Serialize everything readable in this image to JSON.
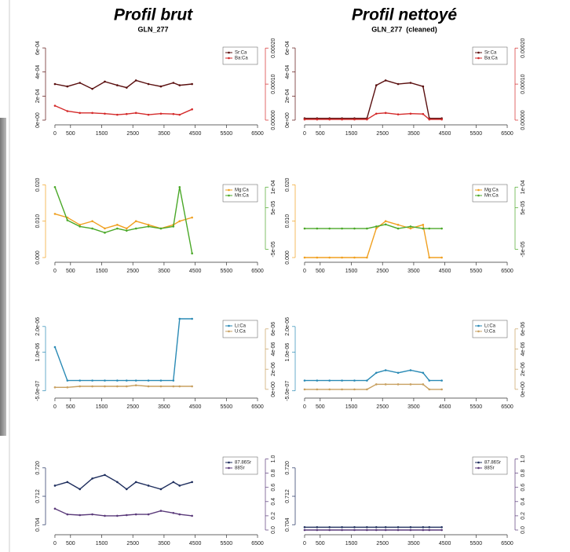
{
  "columns": [
    {
      "title": "Profil brut",
      "subtitle": "GLN_277"
    },
    {
      "title": "Profil nettoyé",
      "subtitle": "GLN_277  (cleaned)"
    }
  ],
  "chart_data": [
    {
      "type": "line",
      "legend": "upper right",
      "x": [
        0,
        400,
        800,
        1200,
        1600,
        2000,
        2300,
        2600,
        3000,
        3400,
        3800,
        4000,
        4400
      ],
      "xlim": [
        -150,
        6600
      ],
      "xticks": [
        0,
        500,
        1500,
        2500,
        3500,
        4500,
        5500,
        6500
      ],
      "ylim": [
        0,
        0.00062
      ],
      "yticks": [
        {
          "value": 0,
          "label": "0e+00"
        },
        {
          "value": 0.0002,
          "label": "2e-04"
        },
        {
          "value": 0.0004,
          "label": "4e-04"
        },
        {
          "value": 0.0006,
          "label": "6e-04"
        }
      ],
      "y2lim": [
        0,
        0.000207
      ],
      "y2ticks": [
        {
          "value": 0,
          "label": "0.00000"
        },
        {
          "value": 0.0001,
          "label": "0.00010"
        },
        {
          "value": 0.0002,
          "label": "0.00020"
        }
      ],
      "series": [
        {
          "name": "Sr:Ca",
          "color": "#5a0f0f",
          "values": [
            0.0003,
            0.00028,
            0.00031,
            0.00026,
            0.00032,
            0.00029,
            0.00027,
            0.00033,
            0.0003,
            0.00028,
            0.00031,
            0.00029,
            0.0003
          ]
        },
        {
          "name": "Ba:Ca",
          "color": "#d42a2a",
          "axis": "y2",
          "values": [
            4e-05,
            2.5e-05,
            2e-05,
            2e-05,
            1.8e-05,
            1.5e-05,
            1.7e-05,
            2e-05,
            1.5e-05,
            1.8e-05,
            1.7e-05,
            1.5e-05,
            3e-05
          ]
        }
      ]
    },
    {
      "type": "line",
      "legend": "upper right",
      "x": [
        0,
        400,
        800,
        1200,
        1600,
        2000,
        2300,
        2600,
        3000,
        3400,
        3800,
        4000,
        4400
      ],
      "xlim": [
        -150,
        6600
      ],
      "xticks": [
        0,
        500,
        1500,
        2500,
        3500,
        4500,
        5500,
        6500
      ],
      "ylim": [
        0,
        0.00062
      ],
      "yticks": [
        {
          "value": 0,
          "label": "0e+00"
        },
        {
          "value": 0.0002,
          "label": "2e-04"
        },
        {
          "value": 0.0004,
          "label": "4e-04"
        },
        {
          "value": 0.0006,
          "label": "6e-04"
        }
      ],
      "y2lim": [
        0,
        0.000207
      ],
      "y2ticks": [
        {
          "value": 0,
          "label": "0.00000"
        },
        {
          "value": 0.0001,
          "label": "0.00010"
        },
        {
          "value": 0.0002,
          "label": "0.00020"
        }
      ],
      "series": [
        {
          "name": "Sr:Ca",
          "color": "#5a0f0f",
          "values": [
            1.5e-05,
            1.5e-05,
            1.5e-05,
            1.5e-05,
            1.5e-05,
            1.5e-05,
            0.00029,
            0.00033,
            0.0003,
            0.00031,
            0.00028,
            1.5e-05,
            1.5e-05
          ]
        },
        {
          "name": "Ba:Ca",
          "color": "#d42a2a",
          "axis": "y2",
          "values": [
            2e-06,
            2e-06,
            2e-06,
            2e-06,
            2e-06,
            2e-06,
            1.8e-05,
            2e-05,
            1.6e-05,
            1.8e-05,
            1.7e-05,
            2e-06,
            2e-06
          ]
        }
      ]
    },
    {
      "type": "line",
      "legend": "upper right",
      "x": [
        0,
        400,
        800,
        1200,
        1600,
        2000,
        2300,
        2600,
        3000,
        3400,
        3800,
        4000,
        4400
      ],
      "xlim": [
        -150,
        6600
      ],
      "xticks": [
        0,
        500,
        1500,
        2500,
        3500,
        4500,
        5500,
        6500
      ],
      "ylim": [
        0,
        0.0205
      ],
      "yticks": [
        {
          "value": 0,
          "label": "0.000"
        },
        {
          "value": 0.01,
          "label": "0.010"
        },
        {
          "value": 0.02,
          "label": "0.020"
        }
      ],
      "y2lim": [
        -7e-05,
        0.00011
      ],
      "y2ticks": [
        {
          "value": -5e-05,
          "label": "-5e-05"
        },
        {
          "value": 5e-05,
          "label": "5e-05"
        },
        {
          "value": 0.0001,
          "label": "1e-04"
        }
      ],
      "series": [
        {
          "name": "Mg:Ca",
          "color": "#f0a020",
          "values": [
            0.012,
            0.011,
            0.009,
            0.01,
            0.008,
            0.009,
            0.008,
            0.01,
            0.009,
            0.008,
            0.009,
            0.01,
            0.011
          ]
        },
        {
          "name": "Mn:Ca",
          "color": "#4aa828",
          "axis": "y2",
          "values": [
            0.0001,
            2e-05,
            5e-06,
            0,
            -1e-05,
            0,
            -5e-06,
            0,
            5e-06,
            0,
            5e-06,
            0.0001,
            -6e-05
          ]
        }
      ]
    },
    {
      "type": "line",
      "legend": "upper right",
      "x": [
        0,
        400,
        800,
        1200,
        1600,
        2000,
        2300,
        2600,
        3000,
        3400,
        3800,
        4000,
        4400
      ],
      "xlim": [
        -150,
        6600
      ],
      "xticks": [
        0,
        500,
        1500,
        2500,
        3500,
        4500,
        5500,
        6500
      ],
      "ylim": [
        0,
        0.0205
      ],
      "yticks": [
        {
          "value": 0,
          "label": "0.000"
        },
        {
          "value": 0.01,
          "label": "0.010"
        },
        {
          "value": 0.02,
          "label": "0.020"
        }
      ],
      "y2lim": [
        -7e-05,
        0.00011
      ],
      "y2ticks": [
        {
          "value": -5e-05,
          "label": "-5e-05"
        },
        {
          "value": 5e-05,
          "label": "5e-05"
        },
        {
          "value": 0.0001,
          "label": "1e-04"
        }
      ],
      "series": [
        {
          "name": "Mg:Ca",
          "color": "#f0a020",
          "values": [
            0,
            0,
            0,
            0,
            0,
            0,
            0.008,
            0.01,
            0.009,
            0.008,
            0.009,
            0,
            0
          ]
        },
        {
          "name": "Mn:Ca",
          "color": "#4aa828",
          "axis": "y2",
          "values": [
            0,
            0,
            0,
            0,
            0,
            0,
            5e-06,
            1e-05,
            0,
            5e-06,
            0,
            0,
            0
          ]
        }
      ]
    },
    {
      "type": "line",
      "legend": "upper right",
      "x": [
        0,
        400,
        800,
        1200,
        1600,
        2000,
        2300,
        2600,
        3000,
        3400,
        3800,
        4000,
        4400
      ],
      "xlim": [
        -150,
        6600
      ],
      "xticks": [
        0,
        500,
        1500,
        2500,
        3500,
        4500,
        5500,
        6500
      ],
      "ylim": [
        -6e-07,
        2.3e-06
      ],
      "yticks": [
        {
          "value": -5e-07,
          "label": "-5.0e-07"
        },
        {
          "value": 1e-06,
          "label": "1.0e-06"
        },
        {
          "value": 2e-06,
          "label": "2.0e-06"
        }
      ],
      "y2lim": [
        -4e-07,
        7e-06
      ],
      "y2ticks": [
        {
          "value": 0,
          "label": "0e+00"
        },
        {
          "value": 2e-06,
          "label": "2e-06"
        },
        {
          "value": 4e-06,
          "label": "4e-06"
        },
        {
          "value": 6e-06,
          "label": "6e-06"
        }
      ],
      "series": [
        {
          "name": "Li:Ca",
          "color": "#2a8ab5",
          "values": [
            1.2e-06,
            -1e-07,
            -1e-07,
            -1e-07,
            -1e-07,
            -1e-07,
            -1e-07,
            -1e-07,
            -1e-07,
            -1e-07,
            -1e-07,
            2.3e-06,
            2.3e-06
          ]
        },
        {
          "name": "U:Ca",
          "color": "#c8a060",
          "axis": "y2",
          "values": [
            2e-07,
            2e-07,
            3e-07,
            3e-07,
            3e-07,
            3e-07,
            3e-07,
            4e-07,
            3e-07,
            3e-07,
            3e-07,
            3e-07,
            3e-07
          ]
        }
      ]
    },
    {
      "type": "line",
      "legend": "upper right",
      "x": [
        0,
        400,
        800,
        1200,
        1600,
        2000,
        2300,
        2600,
        3000,
        3400,
        3800,
        4000,
        4400
      ],
      "xlim": [
        -150,
        6600
      ],
      "xticks": [
        0,
        500,
        1500,
        2500,
        3500,
        4500,
        5500,
        6500
      ],
      "ylim": [
        -6e-07,
        2.3e-06
      ],
      "yticks": [
        {
          "value": -5e-07,
          "label": "-5.0e-07"
        },
        {
          "value": 1e-06,
          "label": "1.0e-06"
        },
        {
          "value": 2e-06,
          "label": "2.0e-06"
        }
      ],
      "y2lim": [
        -4e-07,
        7e-06
      ],
      "y2ticks": [
        {
          "value": 0,
          "label": "0e+00"
        },
        {
          "value": 2e-06,
          "label": "2e-06"
        },
        {
          "value": 4e-06,
          "label": "4e-06"
        },
        {
          "value": 6e-06,
          "label": "6e-06"
        }
      ],
      "series": [
        {
          "name": "Li:Ca",
          "color": "#2a8ab5",
          "values": [
            -1e-07,
            -1e-07,
            -1e-07,
            -1e-07,
            -1e-07,
            -1e-07,
            2e-07,
            3e-07,
            2e-07,
            3e-07,
            2e-07,
            -1e-07,
            -1e-07
          ]
        },
        {
          "name": "U:Ca",
          "color": "#c8a060",
          "axis": "y2",
          "values": [
            0,
            0,
            0,
            0,
            0,
            0,
            5e-07,
            5e-07,
            5e-07,
            5e-07,
            5e-07,
            0,
            0
          ]
        }
      ]
    },
    {
      "type": "line",
      "legend": "upper right",
      "x": [
        0,
        400,
        800,
        1200,
        1600,
        2000,
        2300,
        2600,
        3000,
        3400,
        3800,
        4000,
        4400
      ],
      "xlim": [
        -150,
        6600
      ],
      "xticks": [
        0,
        500,
        1500,
        2500,
        3500,
        4500,
        5500,
        6500
      ],
      "ylim": [
        0.7025,
        0.7235
      ],
      "yticks": [
        0.704,
        0.712,
        {
          "value": 0.72,
          "label": "0.720"
        }
      ],
      "y2lim": [
        0,
        1.05
      ],
      "y2ticks": [
        {
          "value": 0,
          "label": "0.0"
        },
        0.2,
        0.4,
        0.6,
        0.8,
        {
          "value": 1,
          "label": "1.0"
        }
      ],
      "series": [
        {
          "name": "87.86Sr",
          "color": "#1c2c5c",
          "values": [
            0.715,
            0.716,
            0.714,
            0.717,
            0.718,
            0.716,
            0.714,
            0.716,
            0.715,
            0.714,
            0.716,
            0.715,
            0.716
          ]
        },
        {
          "name": "88Sr",
          "color": "#5a3a7a",
          "axis": "y2",
          "values": [
            0.3,
            0.22,
            0.21,
            0.22,
            0.2,
            0.2,
            0.21,
            0.22,
            0.22,
            0.27,
            0.24,
            0.22,
            0.2
          ]
        }
      ]
    },
    {
      "type": "line",
      "legend": "upper right",
      "x": [
        0,
        400,
        800,
        1200,
        1600,
        2000,
        2300,
        2600,
        3000,
        3400,
        3800,
        4000,
        4400
      ],
      "xlim": [
        -150,
        6600
      ],
      "xticks": [
        0,
        500,
        1500,
        2500,
        3500,
        4500,
        5500,
        6500
      ],
      "ylim": [
        0.7025,
        0.7235
      ],
      "yticks": [
        0.704,
        0.712,
        {
          "value": 0.72,
          "label": "0.720"
        }
      ],
      "y2lim": [
        0,
        1.05
      ],
      "y2ticks": [
        {
          "value": 0,
          "label": "0.0"
        },
        0.2,
        0.4,
        0.6,
        0.8,
        {
          "value": 1,
          "label": "1.0"
        }
      ],
      "series": [
        {
          "name": "87.86Sr",
          "color": "#1c2c5c",
          "values": [
            0.7033,
            0.7033,
            0.7033,
            0.7033,
            0.7033,
            0.7033,
            0.7033,
            0.7033,
            0.7033,
            0.7033,
            0.7033,
            0.7033,
            0.7033
          ]
        },
        {
          "name": "88Sr",
          "color": "#5a3a7a",
          "axis": "y2",
          "values": [
            0,
            0,
            0,
            0,
            0,
            0,
            0,
            0,
            0,
            0,
            0,
            0,
            0
          ]
        }
      ]
    }
  ]
}
